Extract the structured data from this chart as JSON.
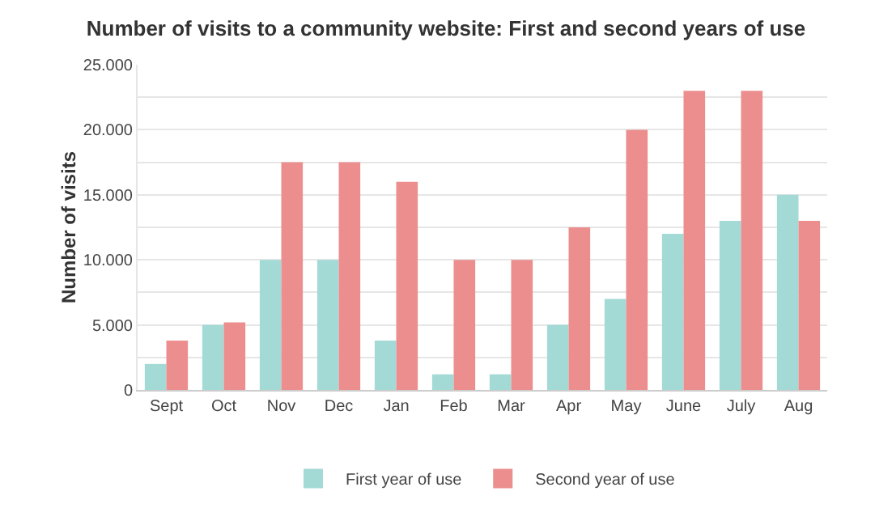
{
  "chart_data": {
    "type": "bar",
    "title": "Number of visits to a community website: First and second years of use",
    "ylabel": "Number of visits",
    "categories": [
      "Sept",
      "Oct",
      "Nov",
      "Dec",
      "Jan",
      "Feb",
      "Mar",
      "Apr",
      "May",
      "June",
      "July",
      "Aug"
    ],
    "series": [
      {
        "name": "First year of use",
        "color": "#a3dad6",
        "values": [
          2000,
          5000,
          10000,
          10000,
          3800,
          1200,
          1200,
          5000,
          7000,
          12000,
          13000,
          15000
        ]
      },
      {
        "name": "Second year of use",
        "color": "#ec8e8e",
        "values": [
          3800,
          5200,
          17500,
          17500,
          16000,
          10000,
          10000,
          12500,
          20000,
          23000,
          23000,
          13000
        ]
      }
    ],
    "ylim": [
      0,
      25000
    ],
    "yticks": [
      {
        "value": 0,
        "label": "0"
      },
      {
        "value": 2500,
        "label": null
      },
      {
        "value": 5000,
        "label": "5.000"
      },
      {
        "value": 7500,
        "label": null
      },
      {
        "value": 10000,
        "label": "10.000"
      },
      {
        "value": 12500,
        "label": null
      },
      {
        "value": 15000,
        "label": "15.000"
      },
      {
        "value": 17500,
        "label": null
      },
      {
        "value": 20000,
        "label": "20.000"
      },
      {
        "value": 22500,
        "label": null
      },
      {
        "value": 25000,
        "label": "25.000"
      }
    ],
    "grid": "y",
    "legend": "bottom"
  }
}
